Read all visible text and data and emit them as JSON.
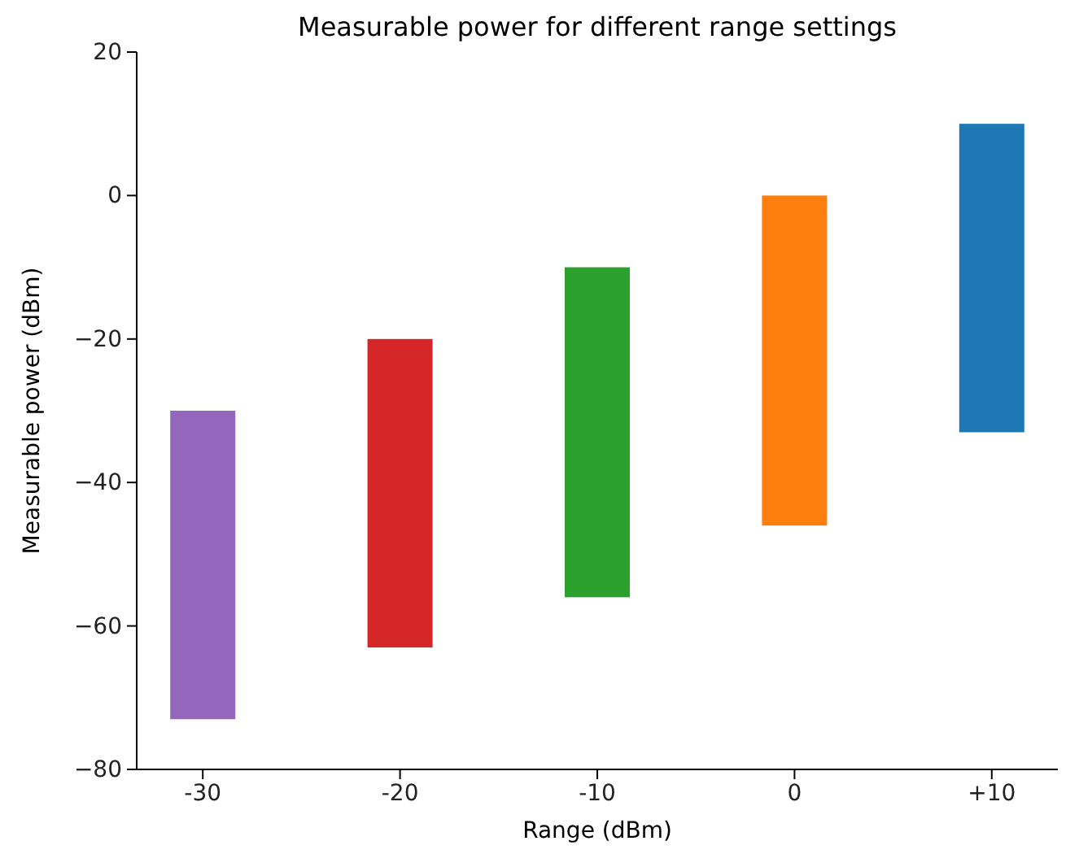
{
  "chart_data": {
    "type": "bar",
    "title": "Measurable power for different range settings",
    "xlabel": "Range (dBm)",
    "ylabel": "Measurable power (dBm)",
    "categories": [
      "-30",
      "-20",
      "-10",
      "0",
      "+10"
    ],
    "base": [
      -73,
      -63,
      -56,
      -46,
      -33
    ],
    "values": [
      43,
      43,
      46,
      46,
      43
    ],
    "colors": [
      "#9467bd",
      "#d62728",
      "#2ca02c",
      "#ff7f0e",
      "#1f77b4"
    ],
    "ylim": [
      -80,
      20
    ],
    "yticks": [
      {
        "value": -80,
        "label": "−80"
      },
      {
        "value": -60,
        "label": "−60"
      },
      {
        "value": -40,
        "label": "−40"
      },
      {
        "value": -20,
        "label": "−20"
      },
      0,
      20
    ]
  }
}
